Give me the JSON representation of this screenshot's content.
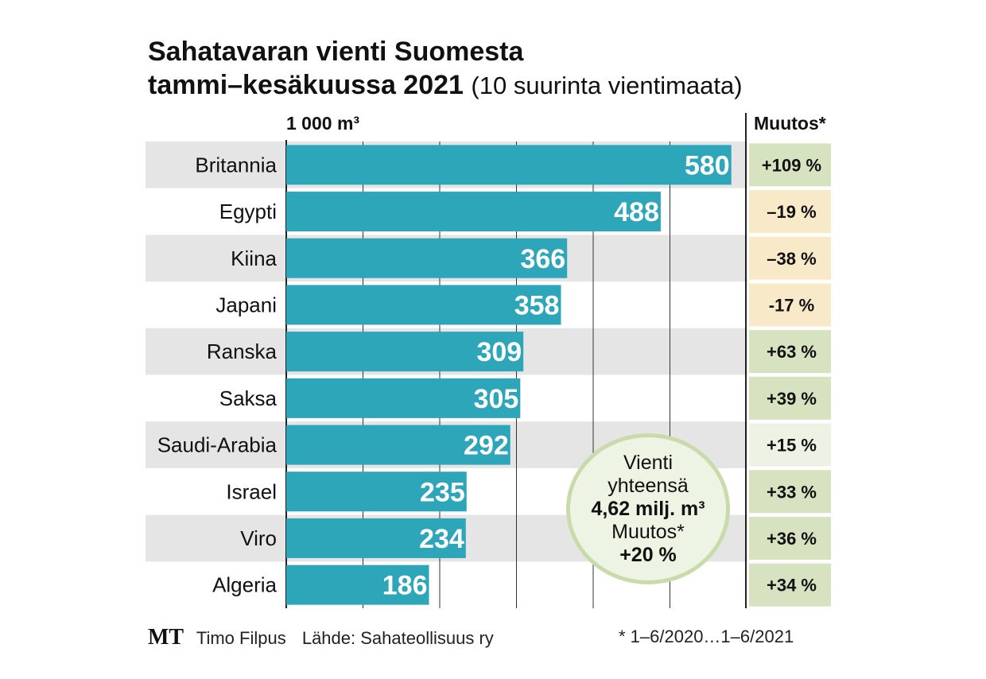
{
  "title_line1": "Sahatavaran vienti Suomesta",
  "title_line2": "tammi–kesäkuussa 2021",
  "title_sub": "(10 suurinta vientimaata)",
  "unit_label": "1 000 m³",
  "change_header": "Muutos*",
  "total_box": {
    "line1": "Vienti",
    "line2": "yhteensä",
    "line3": "4,62 milj. m³",
    "line4": "Muutos*",
    "line5": "+20 %"
  },
  "footer": {
    "logo": "MT",
    "author": "Timo Filpus",
    "source": "Lähde: Sahateollisuus ry",
    "note": "* 1–6/2020…1–6/2021"
  },
  "colors": {
    "bar": "#2ea6b9",
    "row_band": "#e5e5e5",
    "positive": "#d6e2c0",
    "negative": "#f8e9c9",
    "neutral": "#edf2e5"
  },
  "chart_data": {
    "type": "bar",
    "orientation": "horizontal",
    "categories": [
      "Britannia",
      "Egypti",
      "Kiina",
      "Japani",
      "Ranska",
      "Saksa",
      "Saudi-Arabia",
      "Israel",
      "Viro",
      "Algeria"
    ],
    "values": [
      580,
      488,
      366,
      358,
      309,
      305,
      292,
      235,
      234,
      186
    ],
    "value_labels": [
      "580",
      "488",
      "366",
      "358",
      "309",
      "305",
      "292",
      "235",
      "234",
      "186"
    ],
    "change_labels": [
      "+109 %",
      "–19 %",
      "–38 %",
      "-17 %",
      "+63 %",
      "+39 %",
      "+15 %",
      "+33 %",
      "+36 %",
      "+34 %"
    ],
    "change_values": [
      109,
      -19,
      -38,
      -17,
      63,
      39,
      15,
      33,
      36,
      34
    ],
    "xlim": [
      0,
      600
    ],
    "grid": true
  }
}
